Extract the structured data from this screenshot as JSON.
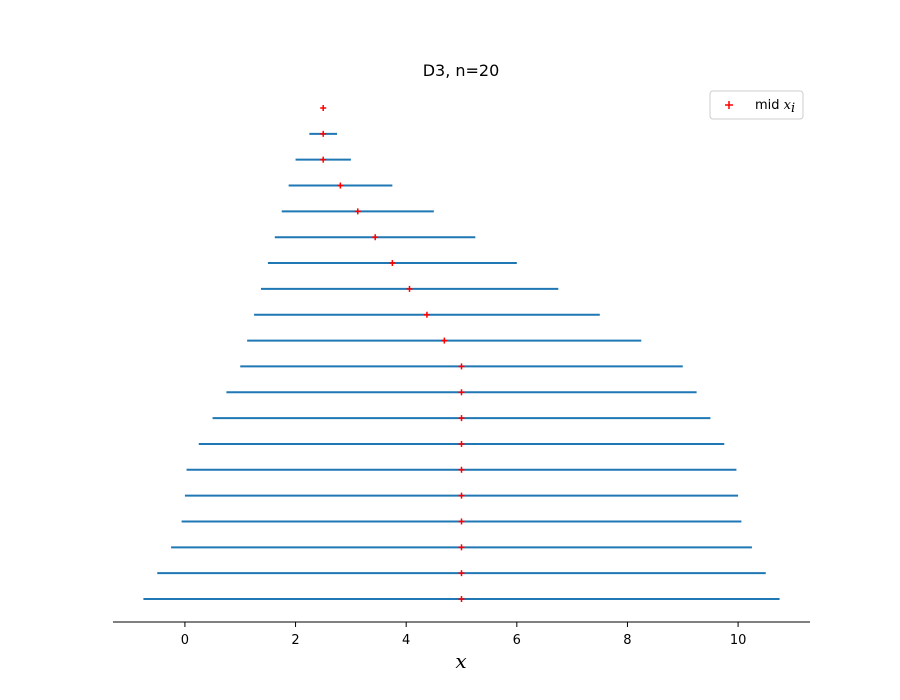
{
  "chart_data": {
    "type": "interval",
    "title": "D3, n=20",
    "xlabel": "x",
    "ylabel": "",
    "xlim": [
      -1.3,
      11.3
    ],
    "xticks": [
      0,
      2,
      4,
      6,
      8,
      10
    ],
    "legend": {
      "label_main": "mid ",
      "label_sub": "x",
      "label_index": "i",
      "placement": "top-right"
    },
    "colors": {
      "interval": "#1f77b4",
      "midpoint": "#ff0000"
    },
    "intervals": [
      {
        "left": 2.5,
        "right": 2.5,
        "mid": 2.5
      },
      {
        "left": 2.25,
        "right": 2.75,
        "mid": 2.5
      },
      {
        "left": 2.0,
        "right": 3.0,
        "mid": 2.5
      },
      {
        "left": 1.875,
        "right": 3.75,
        "mid": 2.81
      },
      {
        "left": 1.75,
        "right": 4.5,
        "mid": 3.125
      },
      {
        "left": 1.625,
        "right": 5.25,
        "mid": 3.44
      },
      {
        "left": 1.5,
        "right": 6.0,
        "mid": 3.75
      },
      {
        "left": 1.375,
        "right": 6.75,
        "mid": 4.06
      },
      {
        "left": 1.25,
        "right": 7.5,
        "mid": 4.375
      },
      {
        "left": 1.125,
        "right": 8.25,
        "mid": 4.69
      },
      {
        "left": 1.0,
        "right": 9.0,
        "mid": 5.0
      },
      {
        "left": 0.75,
        "right": 9.25,
        "mid": 5.0
      },
      {
        "left": 0.5,
        "right": 9.5,
        "mid": 5.0
      },
      {
        "left": 0.25,
        "right": 9.75,
        "mid": 5.0
      },
      {
        "left": 0.03,
        "right": 9.97,
        "mid": 5.0
      },
      {
        "left": 0.0,
        "right": 10.0,
        "mid": 5.0
      },
      {
        "left": -0.06,
        "right": 10.06,
        "mid": 5.0
      },
      {
        "left": -0.25,
        "right": 10.25,
        "mid": 5.0
      },
      {
        "left": -0.5,
        "right": 10.5,
        "mid": 5.0
      },
      {
        "left": -0.75,
        "right": 10.75,
        "mid": 5.0
      }
    ]
  }
}
